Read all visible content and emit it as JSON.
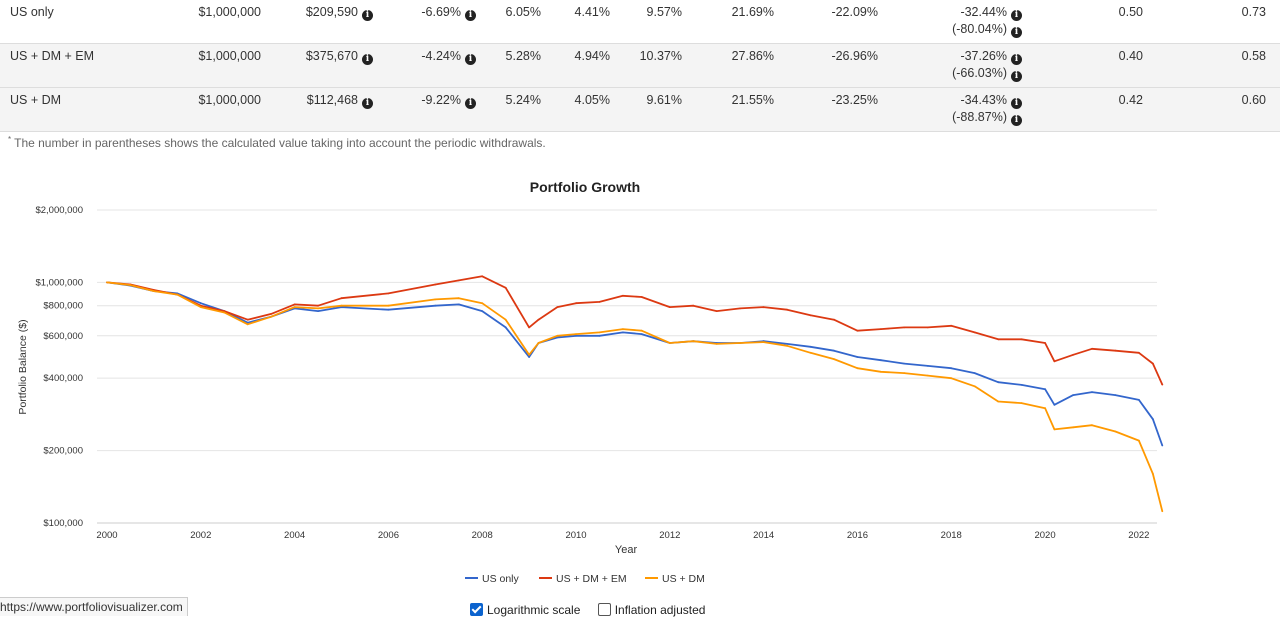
{
  "table": {
    "rows": [
      {
        "name": "US only",
        "initial": "$1,000,000",
        "final": "$209,590",
        "cagr": "-6.69%",
        "c1": "6.05%",
        "c2": "4.41%",
        "c3": "9.57%",
        "best": "21.69%",
        "worst": "-22.09%",
        "drawdown": "-32.44%",
        "drawdown_adj": "(-80.04%)",
        "sharpe": "0.50",
        "sortino": "0.73"
      },
      {
        "name": "US + DM + EM",
        "initial": "$1,000,000",
        "final": "$375,670",
        "cagr": "-4.24%",
        "c1": "5.28%",
        "c2": "4.94%",
        "c3": "10.37%",
        "best": "27.86%",
        "worst": "-26.96%",
        "drawdown": "-37.26%",
        "drawdown_adj": "(-66.03%)",
        "sharpe": "0.40",
        "sortino": "0.58"
      },
      {
        "name": "US + DM",
        "initial": "$1,000,000",
        "final": "$112,468",
        "cagr": "-9.22%",
        "c1": "5.24%",
        "c2": "4.05%",
        "c3": "9.61%",
        "best": "21.55%",
        "worst": "-23.25%",
        "drawdown": "-34.43%",
        "drawdown_adj": "(-88.87%)",
        "sharpe": "0.42",
        "sortino": "0.60"
      }
    ],
    "info_glyph": "i"
  },
  "footnote": {
    "marker": "*",
    "text": "The number in parentheses shows the calculated value taking into account the periodic withdrawals."
  },
  "chart_data": {
    "type": "line",
    "title": "Portfolio Growth",
    "xlabel": "Year",
    "ylabel": "Portfolio Balance ($)",
    "log_scale": true,
    "grid": true,
    "legend_position": "bottom",
    "xlim": [
      2000,
      2022.6
    ],
    "ylim": [
      100000,
      2000000
    ],
    "x_ticks": [
      2000,
      2002,
      2004,
      2006,
      2008,
      2010,
      2012,
      2014,
      2016,
      2018,
      2020,
      2022
    ],
    "x_tick_labels": [
      "2000",
      "2002",
      "2004",
      "2006",
      "2008",
      "2010",
      "2012",
      "2014",
      "2016",
      "2018",
      "2020",
      "2022"
    ],
    "y_ticks": [
      100000,
      200000,
      400000,
      600000,
      800000,
      1000000,
      2000000
    ],
    "y_tick_labels": [
      "$100,000",
      "$200,000",
      "$400,000",
      "$600,000",
      "$800,000",
      "$1,000,000",
      "$2,000,000"
    ],
    "series": [
      {
        "name": "US only",
        "color": "#3366cc",
        "x": [
          2000,
          2000.5,
          2001,
          2001.5,
          2002,
          2002.5,
          2003,
          2003.5,
          2004,
          2004.5,
          2005,
          2006,
          2007,
          2007.5,
          2008,
          2008.5,
          2009,
          2009.2,
          2009.6,
          2010,
          2010.5,
          2011,
          2011.4,
          2012,
          2012.5,
          2013,
          2013.5,
          2014,
          2014.5,
          2015,
          2015.5,
          2016,
          2016.5,
          2017,
          2017.5,
          2018,
          2018.5,
          2019,
          2019.5,
          2020,
          2020.2,
          2020.6,
          2021,
          2021.5,
          2022,
          2022.3,
          2022.5
        ],
        "values": [
          1000000,
          970000,
          920000,
          900000,
          820000,
          760000,
          680000,
          720000,
          780000,
          760000,
          790000,
          770000,
          800000,
          810000,
          760000,
          650000,
          490000,
          560000,
          590000,
          600000,
          600000,
          620000,
          610000,
          560000,
          570000,
          560000,
          560000,
          570000,
          555000,
          540000,
          520000,
          490000,
          475000,
          460000,
          450000,
          440000,
          420000,
          385000,
          375000,
          360000,
          310000,
          340000,
          350000,
          340000,
          325000,
          270000,
          210000
        ]
      },
      {
        "name": "US + DM + EM",
        "color": "#dc3912",
        "x": [
          2000,
          2000.5,
          2001,
          2001.5,
          2002,
          2002.5,
          2003,
          2003.5,
          2004,
          2004.5,
          2005,
          2006,
          2007,
          2007.5,
          2008,
          2008.5,
          2009,
          2009.2,
          2009.6,
          2010,
          2010.5,
          2011,
          2011.4,
          2012,
          2012.5,
          2013,
          2013.5,
          2014,
          2014.5,
          2015,
          2015.5,
          2016,
          2016.5,
          2017,
          2017.5,
          2018,
          2018.5,
          2019,
          2019.5,
          2020,
          2020.2,
          2020.6,
          2021,
          2021.5,
          2022,
          2022.3,
          2022.5
        ],
        "values": [
          1000000,
          980000,
          930000,
          890000,
          800000,
          760000,
          700000,
          740000,
          810000,
          800000,
          860000,
          900000,
          980000,
          1020000,
          1060000,
          950000,
          650000,
          700000,
          790000,
          820000,
          830000,
          880000,
          870000,
          790000,
          800000,
          760000,
          780000,
          790000,
          770000,
          730000,
          700000,
          630000,
          640000,
          650000,
          650000,
          660000,
          620000,
          580000,
          580000,
          560000,
          470000,
          500000,
          530000,
          520000,
          510000,
          460000,
          376000
        ]
      },
      {
        "name": "US + DM",
        "color": "#ff9900",
        "x": [
          2000,
          2000.5,
          2001,
          2001.5,
          2002,
          2002.5,
          2003,
          2003.5,
          2004,
          2004.5,
          2005,
          2006,
          2007,
          2007.5,
          2008,
          2008.5,
          2009,
          2009.2,
          2009.6,
          2010,
          2010.5,
          2011,
          2011.4,
          2012,
          2012.5,
          2013,
          2013.5,
          2014,
          2014.5,
          2015,
          2015.5,
          2016,
          2016.5,
          2017,
          2017.5,
          2018,
          2018.5,
          2019,
          2019.5,
          2020,
          2020.2,
          2020.6,
          2021,
          2021.5,
          2022,
          2022.3,
          2022.5
        ],
        "values": [
          1000000,
          975000,
          920000,
          890000,
          790000,
          750000,
          670000,
          720000,
          790000,
          780000,
          800000,
          800000,
          850000,
          860000,
          820000,
          700000,
          500000,
          560000,
          600000,
          610000,
          620000,
          640000,
          630000,
          560000,
          570000,
          555000,
          560000,
          565000,
          545000,
          510000,
          480000,
          440000,
          425000,
          420000,
          410000,
          400000,
          370000,
          320000,
          315000,
          300000,
          245000,
          250000,
          255000,
          240000,
          220000,
          160000,
          112000
        ]
      }
    ]
  },
  "options": {
    "log_label": "Logarithmic scale",
    "log_checked": true,
    "inflation_label": "Inflation adjusted",
    "inflation_checked": false
  },
  "status_bar": {
    "url": "https://www.portfoliovisualizer.com"
  }
}
